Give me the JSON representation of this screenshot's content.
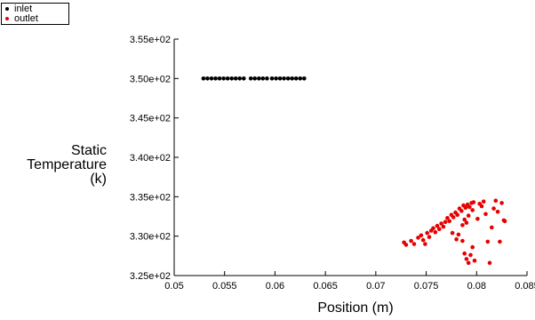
{
  "chart_data": {
    "type": "scatter",
    "xlabel": "Position (m)",
    "ylabel": [
      "Static",
      "Temperature",
      "(k)"
    ],
    "xlim": [
      0.05,
      0.085
    ],
    "ylim": [
      325,
      355
    ],
    "x_ticks": [
      0.05,
      0.055,
      0.06,
      0.065,
      0.07,
      0.075,
      0.08,
      0.085
    ],
    "x_tick_labels": [
      "0.05",
      "0.055",
      "0.06",
      "0.065",
      "0.07",
      "0.075",
      "0.08",
      "0.085"
    ],
    "y_ticks": [
      325,
      330,
      335,
      340,
      345,
      350,
      355
    ],
    "y_tick_labels": [
      "3.25e+02",
      "3.30e+02",
      "3.35e+02",
      "3.40e+02",
      "3.45e+02",
      "3.50e+02",
      "3.55e+02"
    ],
    "legend_position": "top-left",
    "grid": false,
    "series": [
      {
        "name": "inlet",
        "color": "#000000",
        "points": [
          [
            0.0529,
            350
          ],
          [
            0.0533,
            350
          ],
          [
            0.0537,
            350
          ],
          [
            0.0541,
            350
          ],
          [
            0.0545,
            350
          ],
          [
            0.0549,
            350
          ],
          [
            0.0553,
            350
          ],
          [
            0.0557,
            350
          ],
          [
            0.0561,
            350
          ],
          [
            0.0565,
            350
          ],
          [
            0.0569,
            350
          ],
          [
            0.0576,
            350
          ],
          [
            0.058,
            350
          ],
          [
            0.0584,
            350
          ],
          [
            0.0588,
            350
          ],
          [
            0.0592,
            350
          ],
          [
            0.0597,
            350
          ],
          [
            0.0601,
            350
          ],
          [
            0.0605,
            350
          ],
          [
            0.0609,
            350
          ],
          [
            0.0613,
            350
          ],
          [
            0.0617,
            350
          ],
          [
            0.0621,
            350
          ],
          [
            0.0625,
            350
          ],
          [
            0.0629,
            350
          ]
        ]
      },
      {
        "name": "outlet",
        "color": "#e60000",
        "points": [
          [
            0.0728,
            329.2
          ],
          [
            0.073,
            328.9
          ],
          [
            0.0735,
            329.4
          ],
          [
            0.0738,
            329.0
          ],
          [
            0.0742,
            329.8
          ],
          [
            0.0745,
            330.1
          ],
          [
            0.0747,
            329.5
          ],
          [
            0.0749,
            329.0
          ],
          [
            0.0751,
            330.4
          ],
          [
            0.0753,
            329.9
          ],
          [
            0.0755,
            330.7
          ],
          [
            0.0757,
            331.0
          ],
          [
            0.0759,
            330.5
          ],
          [
            0.0761,
            331.3
          ],
          [
            0.0763,
            330.9
          ],
          [
            0.0765,
            331.6
          ],
          [
            0.0767,
            331.2
          ],
          [
            0.0769,
            331.8
          ],
          [
            0.0771,
            332.3
          ],
          [
            0.0773,
            331.9
          ],
          [
            0.0775,
            332.7
          ],
          [
            0.0777,
            332.4
          ],
          [
            0.0779,
            333.0
          ],
          [
            0.0781,
            332.7
          ],
          [
            0.0783,
            333.5
          ],
          [
            0.0785,
            333.2
          ],
          [
            0.0787,
            333.9
          ],
          [
            0.0789,
            333.6
          ],
          [
            0.0791,
            334.0
          ],
          [
            0.0793,
            333.7
          ],
          [
            0.0795,
            334.2
          ],
          [
            0.0797,
            334.3
          ],
          [
            0.0776,
            330.4
          ],
          [
            0.078,
            329.6
          ],
          [
            0.0782,
            330.2
          ],
          [
            0.0786,
            331.4
          ],
          [
            0.0788,
            332.1
          ],
          [
            0.079,
            331.7
          ],
          [
            0.0792,
            332.6
          ],
          [
            0.0796,
            333.3
          ],
          [
            0.0786,
            329.4
          ],
          [
            0.0788,
            327.8
          ],
          [
            0.079,
            327.1
          ],
          [
            0.0792,
            326.6
          ],
          [
            0.0794,
            327.6
          ],
          [
            0.0796,
            328.6
          ],
          [
            0.0798,
            326.9
          ],
          [
            0.0801,
            332.2
          ],
          [
            0.0803,
            334.1
          ],
          [
            0.0805,
            333.8
          ],
          [
            0.0807,
            334.4
          ],
          [
            0.0809,
            332.8
          ],
          [
            0.0811,
            329.3
          ],
          [
            0.0813,
            326.6
          ],
          [
            0.0815,
            331.1
          ],
          [
            0.0817,
            333.5
          ],
          [
            0.0819,
            334.5
          ],
          [
            0.0821,
            333.1
          ],
          [
            0.0823,
            329.3
          ],
          [
            0.0825,
            334.2
          ],
          [
            0.0827,
            332.0
          ],
          [
            0.0828,
            331.9
          ]
        ]
      }
    ]
  }
}
